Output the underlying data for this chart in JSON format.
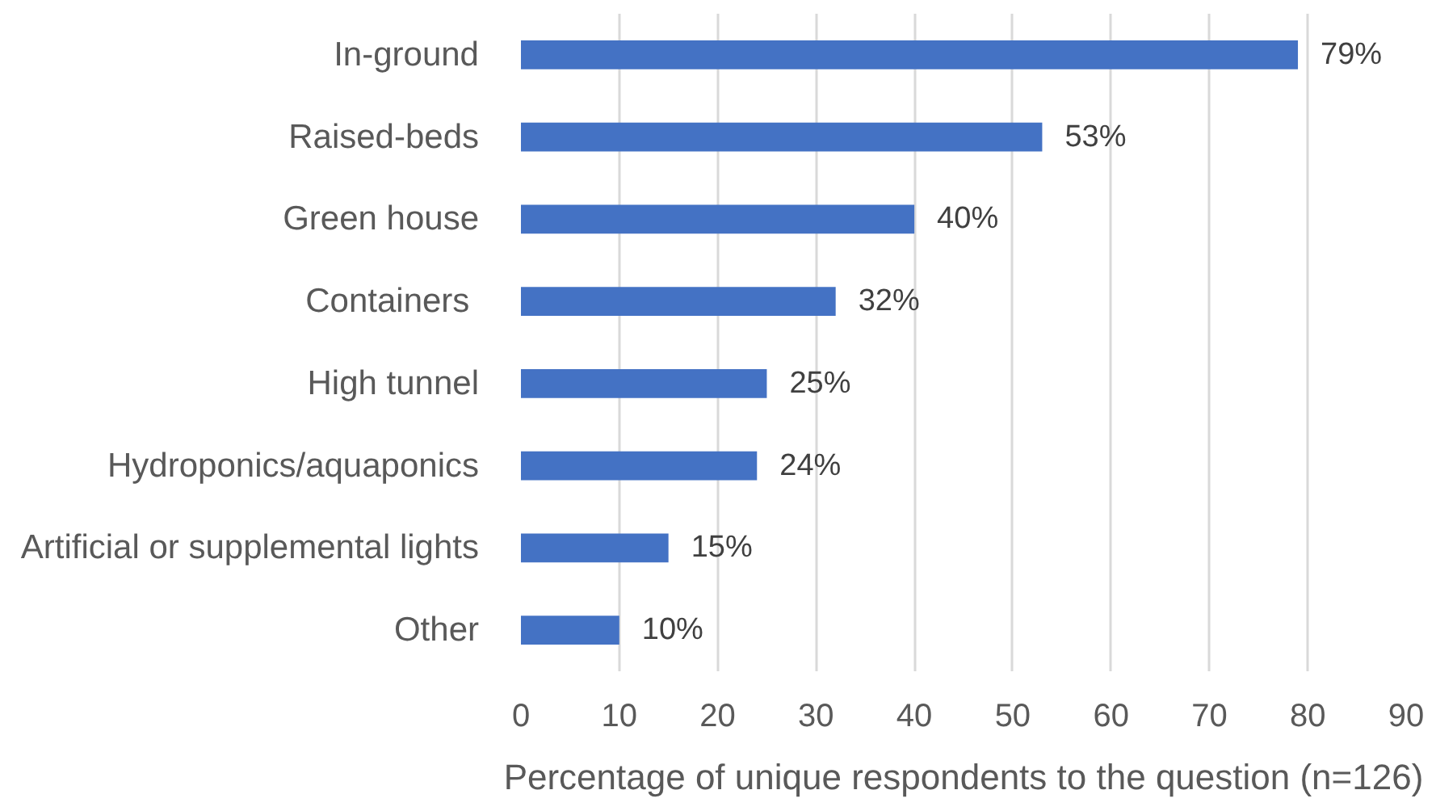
{
  "chart_data": {
    "type": "bar",
    "orientation": "horizontal",
    "categories": [
      "In-ground",
      "Raised-beds",
      "Green house",
      "Containers ",
      "High tunnel",
      "Hydroponics/aquaponics",
      "Artificial or supplemental lights",
      "Other"
    ],
    "values": [
      79,
      53,
      40,
      32,
      25,
      24,
      15,
      10
    ],
    "value_labels": [
      "79%",
      "53%",
      "40%",
      "32%",
      "25%",
      "24%",
      "15%",
      "10%"
    ],
    "color": "#4472c4",
    "xlabel": "Percentage of unique respondents to the question (n=126)",
    "xlim": [
      0,
      90
    ],
    "xticks": [
      0,
      10,
      20,
      30,
      40,
      50,
      60,
      70,
      80,
      90
    ],
    "grid": "x"
  }
}
